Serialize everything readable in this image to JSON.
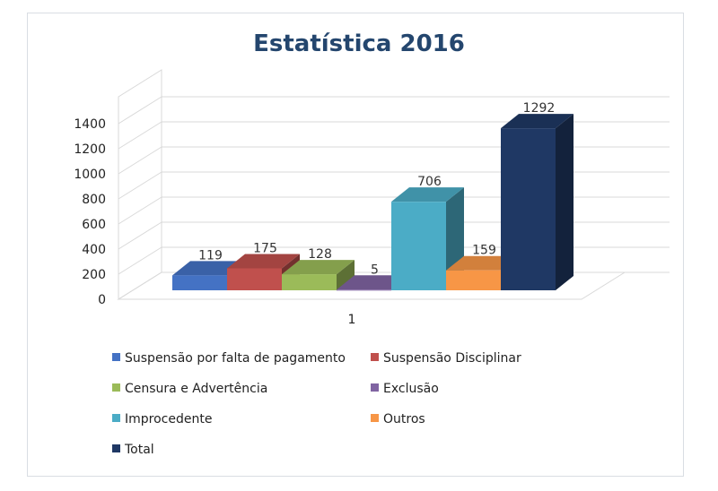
{
  "chart_data": {
    "type": "bar",
    "title": "Estatística 2016",
    "categories": [
      "1"
    ],
    "series": [
      {
        "name": "Suspensão por falta de pagamento",
        "values": [
          119
        ],
        "color": "#4472c4"
      },
      {
        "name": "Suspensão Disciplinar",
        "values": [
          175
        ],
        "color": "#c0504d"
      },
      {
        "name": "Censura e Advertência",
        "values": [
          128
        ],
        "color": "#9bbb59"
      },
      {
        "name": "Exclusão",
        "values": [
          5
        ],
        "color": "#8064a2"
      },
      {
        "name": "Improcedente",
        "values": [
          706
        ],
        "color": "#4bacc6"
      },
      {
        "name": "Outros",
        "values": [
          159
        ],
        "color": "#f79646"
      },
      {
        "name": "Total",
        "values": [
          1292
        ],
        "color": "#1f3864"
      }
    ],
    "y_ticks": [
      "0",
      "200",
      "400",
      "600",
      "800",
      "1000",
      "1200",
      "1400"
    ],
    "ylim": [
      0,
      1400
    ],
    "grid": true,
    "legend_position": "bottom",
    "style": "3d-clustered-column"
  }
}
